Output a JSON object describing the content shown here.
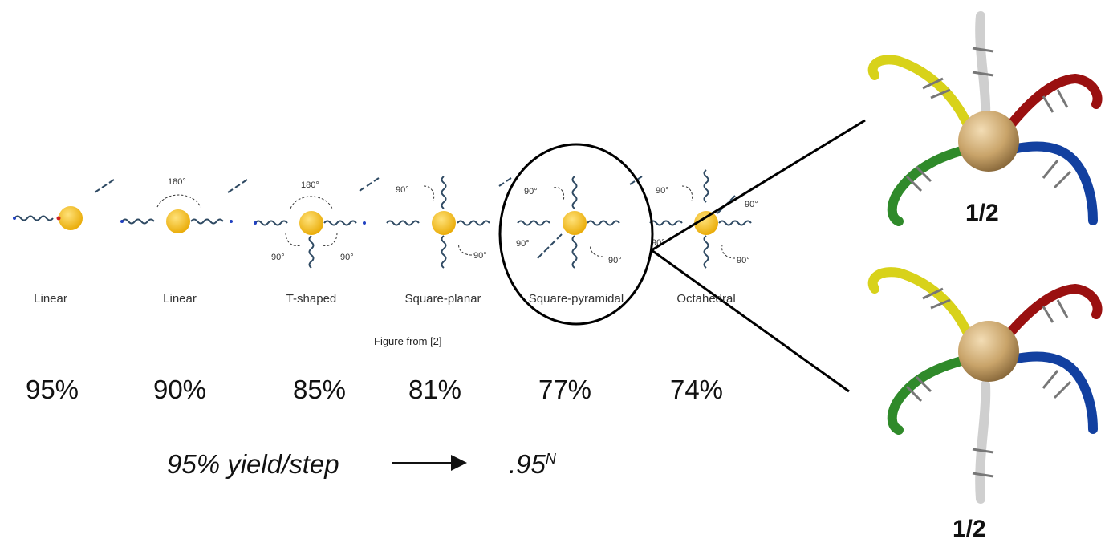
{
  "geometries": [
    {
      "label": "Linear",
      "percent": "95%"
    },
    {
      "label": "Linear",
      "percent": "90%"
    },
    {
      "label": "T-shaped",
      "percent": "85%"
    },
    {
      "label": "Square-planar",
      "percent": "81%"
    },
    {
      "label": "Square-pyramidal",
      "percent": "77%"
    },
    {
      "label": "Octahedral",
      "percent": "74%"
    }
  ],
  "angles": {
    "a180": "180°",
    "a90": "90°"
  },
  "figure_caption": "Figure from [2]",
  "yield": {
    "text": "95% yield/step",
    "result_base": ".95",
    "result_exp": "N"
  },
  "fractions": {
    "top": "1/2",
    "bottom": "1/2"
  },
  "colors": {
    "sphere": "#f0b400",
    "sphere_gold": "#c8a46e",
    "strand": "#2f4a63",
    "dna_yellow": "#d8d21a",
    "dna_white": "#cfcfcf",
    "dna_red": "#9a1010",
    "dna_green": "#2f8a2a",
    "dna_blue": "#1240a0"
  }
}
